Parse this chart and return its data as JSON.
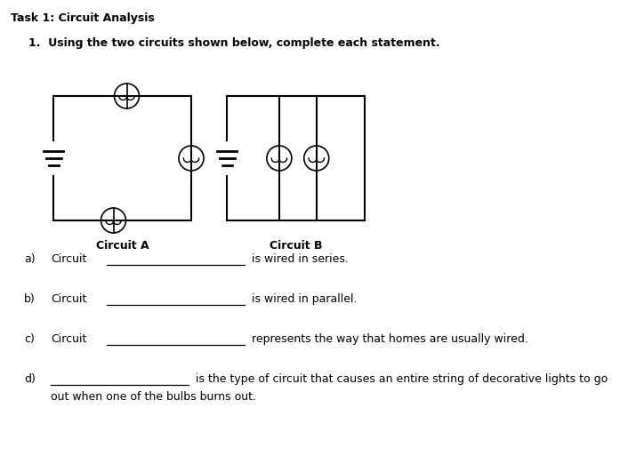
{
  "title": "Task 1: Circuit Analysis",
  "question": "1.  Using the two circuits shown below, complete each statement.",
  "circuit_a_label": "Circuit A",
  "circuit_b_label": "Circuit B",
  "questions": [
    {
      "letter": "a)",
      "prefix": "Circuit",
      "suffix": "is wired in series."
    },
    {
      "letter": "b)",
      "prefix": "Circuit",
      "suffix": "is wired in parallel."
    },
    {
      "letter": "c)",
      "prefix": "Circuit",
      "suffix": "represents the way that homes are usually wired."
    },
    {
      "letter": "d)",
      "prefix": "",
      "suffix": "is the type of circuit that causes an entire string of decorative lights to go",
      "suffix2": "out when one of the bulbs burns out."
    }
  ],
  "bg_color": "#ffffff",
  "text_color": "#000000",
  "line_color": "#000000",
  "figw": 7.15,
  "figh": 5.22,
  "dpi": 100
}
